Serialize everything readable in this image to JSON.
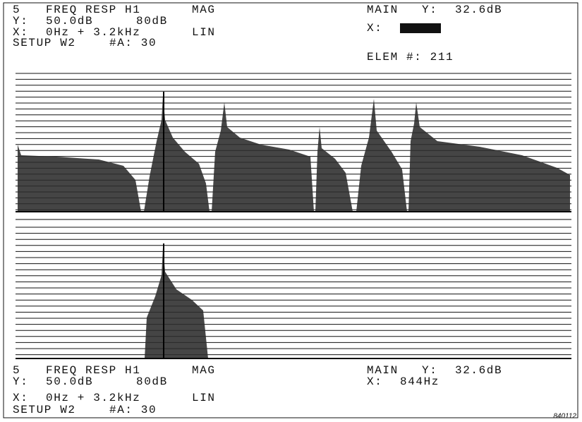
{
  "upper_readout": {
    "trace": "5",
    "function": "FREQ RESP H1",
    "display": "MAG",
    "y_label": "Y:",
    "y_scale": "50.0dB",
    "y_range": "80dB",
    "x_label": "X:",
    "x_span": "0Hz + 3.2kHz",
    "x_mode": "LIN",
    "setup": "SETUP W2",
    "averages": "#A: 30",
    "cursor_main": "MAIN",
    "cursor_y_label": "Y:",
    "cursor_y": "32.6dB",
    "cursor_x_label": "X:",
    "element": "ELEM #: 211"
  },
  "lower_readout": {
    "trace": "5",
    "function": "FREQ RESP H1",
    "display": "MAG",
    "y_label": "Y:",
    "y_scale": "50.0dB",
    "y_range": "80dB",
    "x_label": "X:",
    "x_span": "0Hz + 3.2kHz",
    "x_mode": "LIN",
    "setup": "SETUP W2",
    "averages": "#A: 30",
    "cursor_main": "MAIN",
    "cursor_y_label": "Y:",
    "cursor_y": "32.6dB",
    "cursor_x_label": "X:",
    "cursor_x": "844Hz"
  },
  "figure_id": "840112"
}
